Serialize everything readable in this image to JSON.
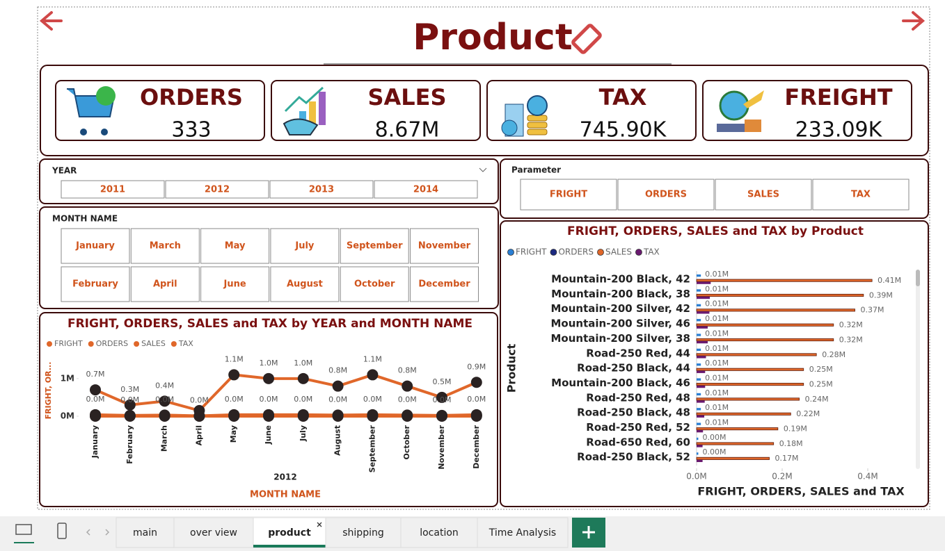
{
  "header": {
    "title": "Product"
  },
  "kpis": [
    {
      "label": "ORDERS",
      "value": "333"
    },
    {
      "label": "SALES",
      "value": "8.67M"
    },
    {
      "label": "TAX",
      "value": "745.90K"
    },
    {
      "label": "FREIGHT",
      "value": "233.09K"
    }
  ],
  "year_slicer": {
    "title": "YEAR",
    "options": [
      "2011",
      "2012",
      "2013",
      "2014"
    ]
  },
  "month_slicer": {
    "title": "MONTH NAME",
    "options": [
      "January",
      "February",
      "March",
      "April",
      "May",
      "June",
      "July",
      "August",
      "September",
      "October",
      "November",
      "December"
    ]
  },
  "parameter_slicer": {
    "title": "Parameter",
    "options": [
      "FRIGHT",
      "ORDERS",
      "SALES",
      "TAX"
    ]
  },
  "chart_data": [
    {
      "type": "line",
      "title": "FRIGHT, ORDERS, SALES and TAX by YEAR and MONTH NAME",
      "y_label": "FRIGHT, OR...",
      "x_label": "MONTH NAME",
      "x_group_label": "2012",
      "categories": [
        "January",
        "February",
        "March",
        "April",
        "May",
        "June",
        "July",
        "August",
        "September",
        "October",
        "November",
        "December"
      ],
      "series": [
        {
          "name": "FRIGHT",
          "color": "#e0672a",
          "values": [
            15000,
            7000,
            10000,
            3000,
            25000,
            22000,
            22000,
            18000,
            25000,
            18000,
            11000,
            20000
          ]
        },
        {
          "name": "ORDERS",
          "color": "#e0672a",
          "values": [
            25,
            10,
            14,
            4,
            36,
            33,
            33,
            27,
            36,
            27,
            17,
            30
          ]
        },
        {
          "name": "SALES",
          "color": "#e0672a",
          "values": [
            700000,
            300000,
            400000,
            150000,
            1100000,
            1000000,
            1000000,
            800000,
            1100000,
            800000,
            500000,
            900000
          ],
          "value_labels": [
            "0.7M",
            "0.3M",
            "0.4M",
            null,
            "1.1M",
            "1.0M",
            "1.0M",
            "0.8M",
            "1.1M",
            "0.8M",
            "0.5M",
            "0.9M"
          ]
        },
        {
          "name": "TAX",
          "color": "#e0672a",
          "values": [
            40000,
            20000,
            30000,
            10000,
            40000,
            40000,
            40000,
            30000,
            40000,
            30000,
            20000,
            40000
          ],
          "value_labels": [
            "0.0M",
            "0.0M",
            "0.0M",
            "0.0M",
            "0.0M",
            "0.0M",
            "0.0M",
            "0.0M",
            "0.0M",
            "0.0M",
            "0.0M",
            "0.0M"
          ]
        }
      ],
      "ylim": [
        0,
        1200000
      ],
      "yticks": [
        {
          "value": 0,
          "label": "0M"
        },
        {
          "value": 1000000,
          "label": "1M"
        }
      ]
    },
    {
      "type": "bar",
      "orientation": "horizontal",
      "title": "FRIGHT, ORDERS, SALES and TAX by Product",
      "y_label": "Product",
      "x_label": "FRIGHT, ORDERS, SALES and TAX",
      "categories": [
        "Mountain-200 Black, 42",
        "Mountain-200 Black, 38",
        "Mountain-200 Silver, 42",
        "Mountain-200 Silver, 46",
        "Mountain-200 Silver, 38",
        "Road-250 Red, 44",
        "Road-250 Black, 44",
        "Mountain-200 Black, 46",
        "Road-250 Red, 48",
        "Road-250 Black, 48",
        "Road-250 Red, 52",
        "Road-650 Red, 60",
        "Road-250 Black, 52"
      ],
      "series": [
        {
          "name": "FRIGHT",
          "color": "#2a7fd4",
          "values": [
            10000,
            10000,
            10000,
            10000,
            10000,
            10000,
            10000,
            10000,
            10000,
            10000,
            10000,
            4000,
            4000
          ],
          "value_labels": [
            "0.01M",
            "0.01M",
            "0.01M",
            "0.01M",
            "0.01M",
            "0.01M",
            "0.01M",
            "0.01M",
            "0.01M",
            "0.01M",
            "0.01M",
            "0.00M",
            "0.00M"
          ]
        },
        {
          "name": "ORDERS",
          "color": "#1c2a80",
          "values": [
            14,
            13,
            12,
            11,
            11,
            10,
            9,
            9,
            8,
            8,
            7,
            7,
            6
          ]
        },
        {
          "name": "SALES",
          "color": "#e0672a",
          "values": [
            410000,
            390000,
            370000,
            320000,
            320000,
            280000,
            250000,
            250000,
            240000,
            220000,
            190000,
            180000,
            170000
          ],
          "value_labels": [
            "0.41M",
            "0.39M",
            "0.37M",
            "0.32M",
            "0.32M",
            "0.28M",
            "0.25M",
            "0.25M",
            "0.24M",
            "0.22M",
            "0.19M",
            "0.18M",
            "0.17M"
          ]
        },
        {
          "name": "TAX",
          "color": "#6a1a70",
          "values": [
            33000,
            31000,
            30000,
            26000,
            26000,
            22000,
            20000,
            20000,
            19000,
            18000,
            15000,
            14000,
            14000
          ]
        }
      ],
      "xlim": [
        0,
        500000
      ],
      "xticks": [
        {
          "value": 0,
          "label": "0.0M"
        },
        {
          "value": 200000,
          "label": "0.2M"
        },
        {
          "value": 400000,
          "label": "0.4M"
        }
      ]
    }
  ],
  "tabs": {
    "items": [
      "main",
      "over view",
      "product",
      "shipping",
      "location",
      "Time Analysis"
    ],
    "active": "product"
  }
}
